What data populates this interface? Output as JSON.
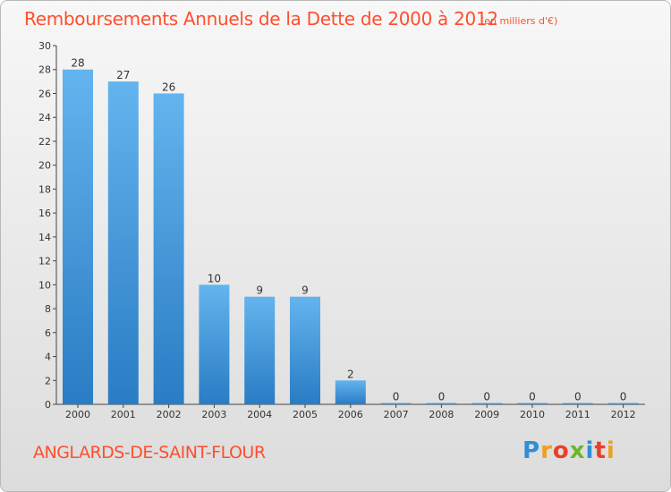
{
  "header": {
    "title": "Remboursements Annuels de la Dette de 2000 à 2012",
    "subtitle": "(en milliers d'€)"
  },
  "footer": {
    "commune": "ANGLARDS-DE-SAINT-FLOUR",
    "logo_text": "Proxiti"
  },
  "chart_data": {
    "type": "bar",
    "title": "Remboursements Annuels de la Dette de 2000 à 2012",
    "subtitle": "(en milliers d'€)",
    "xlabel": "",
    "ylabel": "",
    "categories": [
      "2000",
      "2001",
      "2002",
      "2003",
      "2004",
      "2005",
      "2006",
      "2007",
      "2008",
      "2009",
      "2010",
      "2011",
      "2012"
    ],
    "values": [
      28,
      27,
      26,
      10,
      9,
      9,
      2,
      0,
      0,
      0,
      0,
      0,
      0
    ],
    "data_labels": [
      "28",
      "27",
      "26",
      "10",
      "9",
      "9",
      "2",
      "0",
      "0",
      "0",
      "0",
      "0",
      "0"
    ],
    "ylim": [
      0,
      30
    ],
    "yticks": [
      0,
      2,
      4,
      6,
      8,
      10,
      12,
      14,
      16,
      18,
      20,
      22,
      24,
      26,
      28,
      30
    ],
    "grid": false,
    "bar_color": "#3a8fd8"
  },
  "colors": {
    "title": "#ff4e2e",
    "bar_light": "#63b4ee",
    "bar_dark": "#2a7cc4"
  }
}
